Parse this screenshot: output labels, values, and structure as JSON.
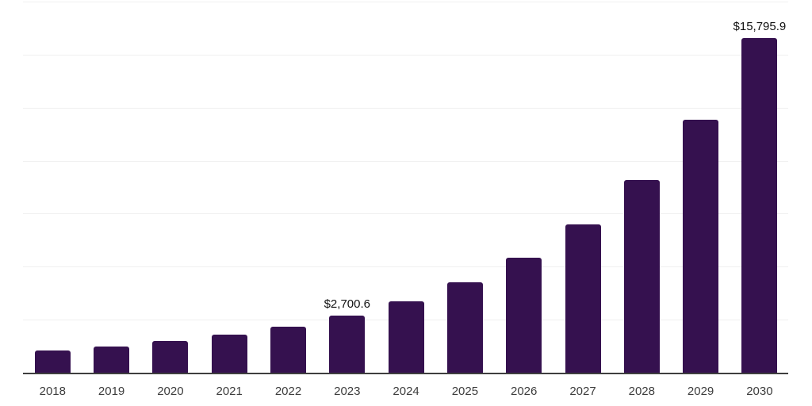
{
  "chart_data": {
    "type": "bar",
    "title": "",
    "xlabel": "",
    "ylabel": "",
    "categories": [
      "2018",
      "2019",
      "2020",
      "2021",
      "2022",
      "2023",
      "2024",
      "2025",
      "2026",
      "2027",
      "2028",
      "2029",
      "2030"
    ],
    "values": [
      1060,
      1250,
      1490,
      1810,
      2180,
      2700.6,
      3380,
      4250,
      5440,
      7010,
      9100,
      11930,
      15795.9
    ],
    "value_labels": [
      {
        "category": "2023",
        "text": "$2,700.6"
      },
      {
        "category": "2030",
        "text": "$15,795.9"
      }
    ],
    "ylim": [
      0,
      17500
    ],
    "grid_step": 2500,
    "grid": true,
    "legend": false,
    "y_axis_tick_labels_visible": false,
    "colors": {
      "bar": "#35114f",
      "axis_line": "#3f3f3f",
      "gridline": "#f0f0f0",
      "tick_label": "#3d3d3d",
      "value_label": "#111111",
      "background": "#ffffff"
    }
  }
}
